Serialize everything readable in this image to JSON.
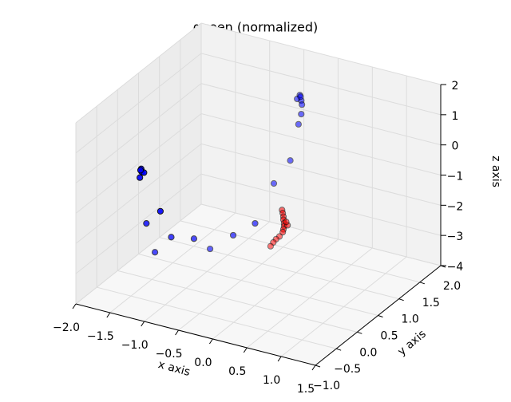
{
  "chart_data": {
    "type": "scatter3d",
    "title": "queen (normalized)",
    "xlabel": "x axis",
    "ylabel": "y axis",
    "zlabel": "z axis",
    "xlim": [
      -2,
      1.5
    ],
    "ylim": [
      -1,
      2
    ],
    "zlim": [
      -4,
      2
    ],
    "xticks": [
      {
        "value": -2,
        "label": "−2.0"
      },
      {
        "value": -1.5,
        "label": "−1.5"
      },
      {
        "value": -1,
        "label": "−1.0"
      },
      {
        "value": -0.5,
        "label": "−0.5"
      },
      {
        "value": 0,
        "label": "0.0"
      },
      0.5,
      {
        "value": 1,
        "label": "1.0"
      },
      1.5
    ],
    "yticks": [
      {
        "value": -1,
        "label": "−1.0"
      },
      {
        "value": -0.5,
        "label": "−0.5"
      },
      {
        "value": 0,
        "label": "0.0"
      },
      0.5,
      {
        "value": 1,
        "label": "1.0"
      },
      1.5,
      {
        "value": 2,
        "label": "2.0"
      }
    ],
    "zticks": [
      {
        "value": -4,
        "label": "−4"
      },
      {
        "value": -3,
        "label": "−3"
      },
      {
        "value": -2,
        "label": "−2"
      },
      {
        "value": -1,
        "label": "−1"
      },
      0,
      1,
      2
    ],
    "grid": true,
    "depthshade": true,
    "series": [
      {
        "color": "#0000ff",
        "x": [
          -1.35,
          -1.34,
          -1.31,
          -1.37,
          -1.36,
          -1.07,
          -1.58,
          -1.4,
          -1.19,
          -1.26,
          -0.8,
          -0.48,
          -1.76,
          -0.45,
          -0.21,
          -0.09,
          -0.05,
          -0.07,
          -0.05,
          -0.04,
          -0.11,
          -0.06
        ],
        "y": [
          -0.5,
          -0.5,
          -0.5,
          -0.5,
          -0.5,
          -0.5,
          0,
          0.3,
          0.5,
          1,
          0.8,
          0.8,
          0.5,
          1.2,
          1.2,
          1.2,
          1.2,
          1.2,
          1.2,
          1.2,
          1.2,
          1.2
        ],
        "z": [
          0.3,
          0.2,
          0.2,
          0,
          0.25,
          -0.94,
          -2.19,
          -2.87,
          -3.02,
          -3.95,
          -3.01,
          -2.43,
          -3.8,
          -1.53,
          -0.63,
          0.64,
          1,
          1.62,
          1.45,
          1.32,
          1.47,
          1.57
        ]
      },
      {
        "color": "#ff0000",
        "x": [
          -0.33,
          -0.32,
          -0.31,
          -0.31,
          -0.3,
          -0.3,
          -0.31,
          -0.32,
          -0.25,
          -0.27,
          -0.49,
          -0.54,
          -0.58,
          -0.62
        ],
        "y": [
          1.2,
          1.2,
          1.2,
          1.2,
          1.2,
          1.2,
          1.2,
          1.2,
          1.2,
          1.2,
          1.4,
          1.4,
          1.4,
          1.4
        ],
        "z": [
          -2.34,
          -2.44,
          -2.55,
          -2.65,
          -2.76,
          -2.86,
          -2.97,
          -3.07,
          -2.8,
          -2.7,
          -3.53,
          -3.65,
          -3.78,
          -3.93
        ]
      }
    ]
  }
}
